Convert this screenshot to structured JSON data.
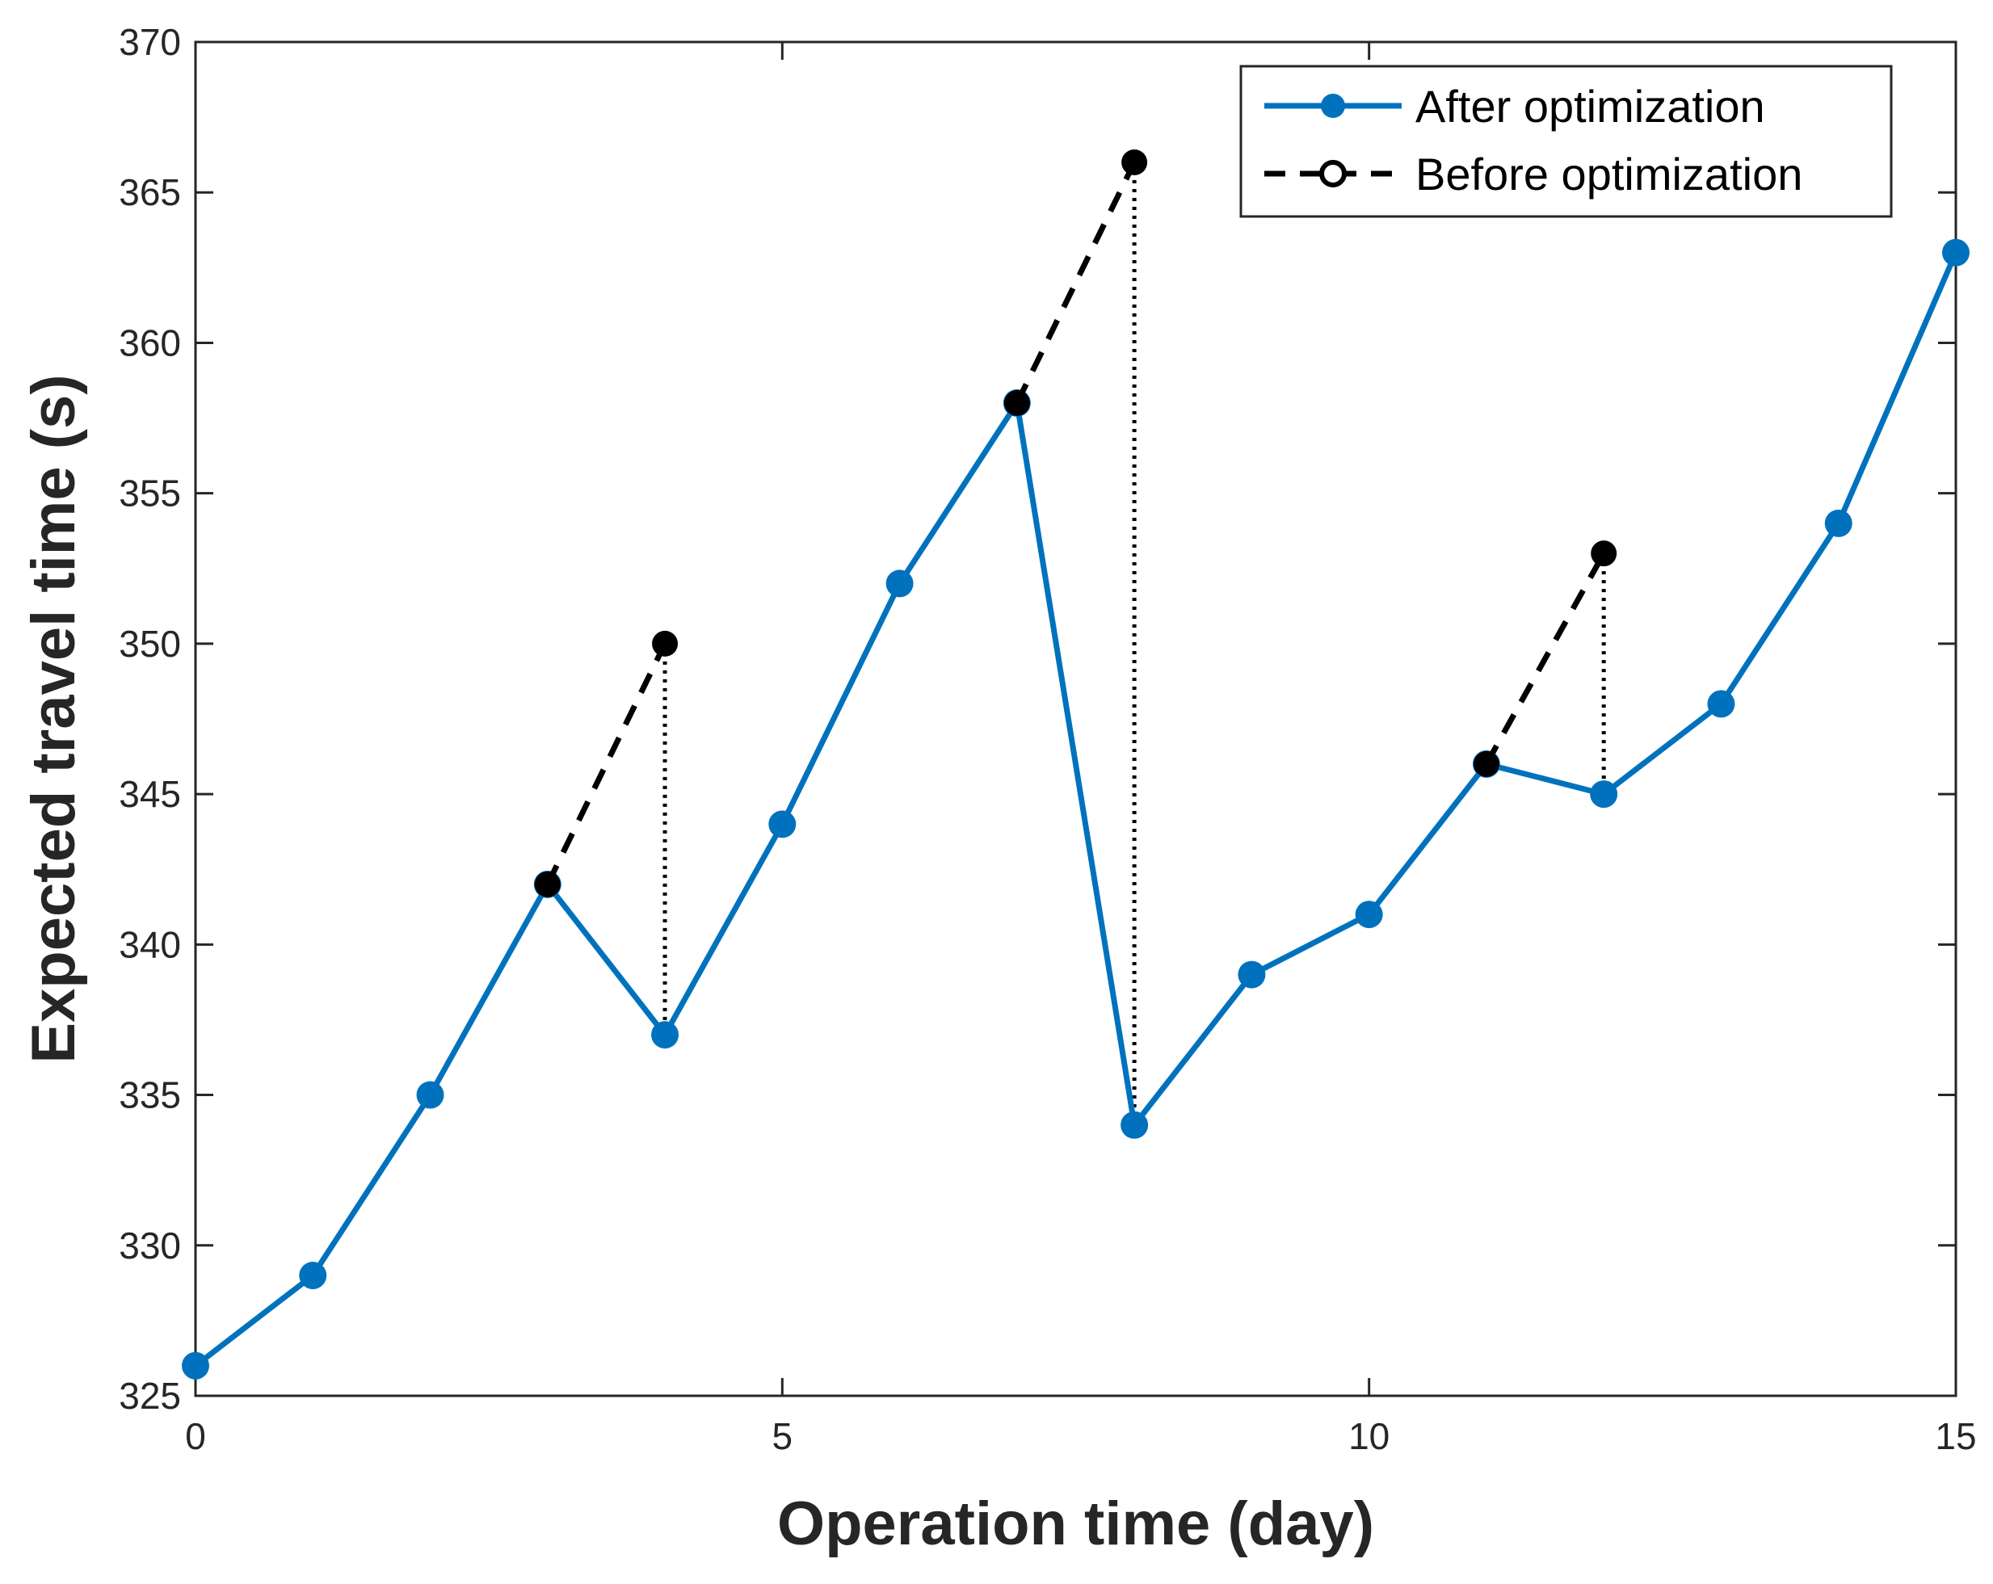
{
  "chart_data": {
    "type": "line",
    "title": "",
    "xlabel": "Operation time (day)",
    "ylabel": "Expected travel time (s)",
    "xlim": [
      0,
      15
    ],
    "ylim": [
      325,
      370
    ],
    "xticks": [
      0,
      5,
      10,
      15
    ],
    "yticks": [
      325,
      330,
      335,
      340,
      345,
      350,
      355,
      360,
      365,
      370
    ],
    "grid": false,
    "legend_position": "top-right",
    "colors": {
      "after": "#0072BD",
      "before": "#000000",
      "axis": "#262626"
    },
    "series": [
      {
        "name": "After optimization",
        "style": "solid-line-filled-circle",
        "x": [
          0,
          1,
          2,
          3,
          4,
          5,
          6,
          7,
          8,
          9,
          10,
          11,
          12,
          13,
          14,
          15
        ],
        "values": [
          326,
          329,
          335,
          342,
          337,
          344,
          352,
          358,
          334,
          339,
          341,
          346,
          345,
          348,
          354,
          363
        ]
      },
      {
        "name": "Before optimization",
        "style": "dashed-line-black-circle",
        "segments": [
          {
            "x": [
              3,
              4
            ],
            "values": [
              342,
              350
            ]
          },
          {
            "x": [
              7,
              8
            ],
            "values": [
              358,
              366
            ]
          },
          {
            "x": [
              11,
              12
            ],
            "values": [
              346,
              353
            ]
          }
        ]
      }
    ],
    "connectors": [
      {
        "x": 4,
        "from": 350,
        "to": 337
      },
      {
        "x": 8,
        "from": 366,
        "to": 334
      },
      {
        "x": 12,
        "from": 353,
        "to": 345
      }
    ]
  }
}
